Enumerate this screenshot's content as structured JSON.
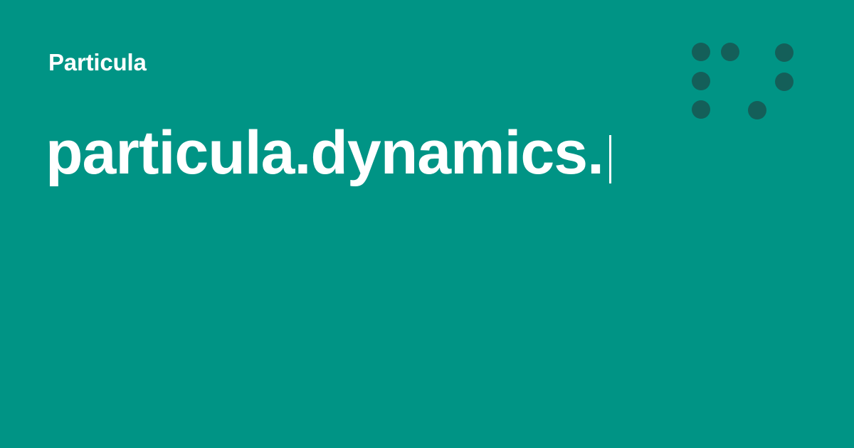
{
  "card": {
    "site_name": "Particula",
    "page_title": "particula.dynamics.",
    "background_color": "#009485",
    "text_color": "#ffffff",
    "logo_dot_color": "#145f59",
    "logo_icon": "dot-grid-logo-icon"
  }
}
